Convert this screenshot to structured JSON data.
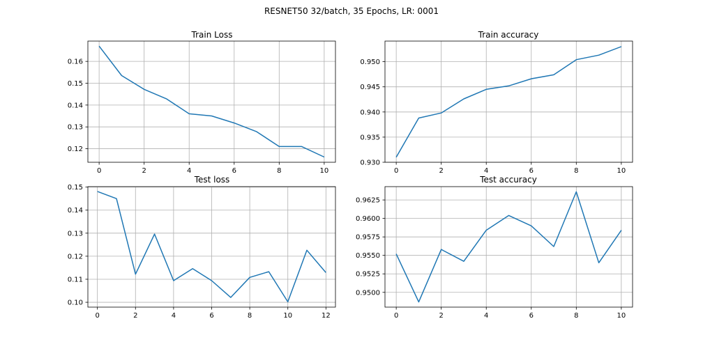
{
  "figure": {
    "suptitle": "RESNET50 32/batch, 35 Epochs, LR: 0001"
  },
  "colors": {
    "line": "#1f77b4",
    "grid": "#b0b0b0",
    "spine": "#000000"
  },
  "chart_data": [
    {
      "type": "line",
      "title": "Train Loss",
      "xlabel": "",
      "ylabel": "",
      "grid": true,
      "xlim": [
        -0.5,
        10.5
      ],
      "ylim": [
        0.1138,
        0.1693
      ],
      "xticks": [
        "0",
        "2",
        "4",
        "6",
        "8",
        "10"
      ],
      "yticks": [
        "0.12",
        "0.13",
        "0.14",
        "0.15",
        "0.16"
      ],
      "series": [
        {
          "x": [
            0,
            1,
            2,
            3,
            4,
            5,
            6,
            7,
            8,
            9,
            10
          ],
          "y": [
            0.167,
            0.1535,
            0.1472,
            0.1428,
            0.136,
            0.135,
            0.1318,
            0.1278,
            0.121,
            0.121,
            0.1162
          ]
        }
      ]
    },
    {
      "type": "line",
      "title": "Train accuracy",
      "xlabel": "",
      "ylabel": "",
      "grid": true,
      "xlim": [
        -0.5,
        10.5
      ],
      "ylim": [
        0.93,
        0.9541
      ],
      "xticks": [
        "0",
        "2",
        "4",
        "6",
        "8",
        "10"
      ],
      "yticks": [
        "0.930",
        "0.935",
        "0.940",
        "0.945",
        "0.950"
      ],
      "series": [
        {
          "x": [
            0,
            1,
            2,
            3,
            4,
            5,
            6,
            7,
            8,
            9,
            10
          ],
          "y": [
            0.931,
            0.9388,
            0.9398,
            0.9426,
            0.9445,
            0.9452,
            0.9466,
            0.9474,
            0.9504,
            0.9513,
            0.953
          ]
        }
      ]
    },
    {
      "type": "line",
      "title": "Test loss",
      "xlabel": "",
      "ylabel": "",
      "grid": true,
      "xlim": [
        -0.5,
        12.5
      ],
      "ylim": [
        0.0979,
        0.1502
      ],
      "xticks": [
        "0",
        "2",
        "4",
        "6",
        "8",
        "10",
        "12"
      ],
      "yticks": [
        "0.10",
        "0.11",
        "0.12",
        "0.13",
        "0.14",
        "0.15"
      ],
      "series": [
        {
          "x": [
            0,
            1,
            2,
            3,
            4,
            5,
            6,
            7,
            8,
            9,
            10,
            11,
            12
          ],
          "y": [
            0.1481,
            0.145,
            0.1122,
            0.1296,
            0.1094,
            0.1146,
            0.1094,
            0.1021,
            0.1108,
            0.1133,
            0.1002,
            0.1226,
            0.1129
          ]
        }
      ]
    },
    {
      "type": "line",
      "title": "Test accuracy",
      "xlabel": "",
      "ylabel": "",
      "grid": true,
      "xlim": [
        -0.5,
        10.5
      ],
      "ylim": [
        0.948,
        0.9643
      ],
      "xticks": [
        "0",
        "2",
        "4",
        "6",
        "8",
        "10"
      ],
      "yticks": [
        "0.9500",
        "0.9525",
        "0.9550",
        "0.9575",
        "0.9600",
        "0.9625"
      ],
      "series": [
        {
          "x": [
            0,
            1,
            2,
            3,
            4,
            5,
            6,
            7,
            8,
            9,
            10
          ],
          "y": [
            0.9552,
            0.9487,
            0.9558,
            0.9542,
            0.9584,
            0.9604,
            0.959,
            0.9562,
            0.9636,
            0.954,
            0.9584
          ]
        }
      ]
    }
  ]
}
